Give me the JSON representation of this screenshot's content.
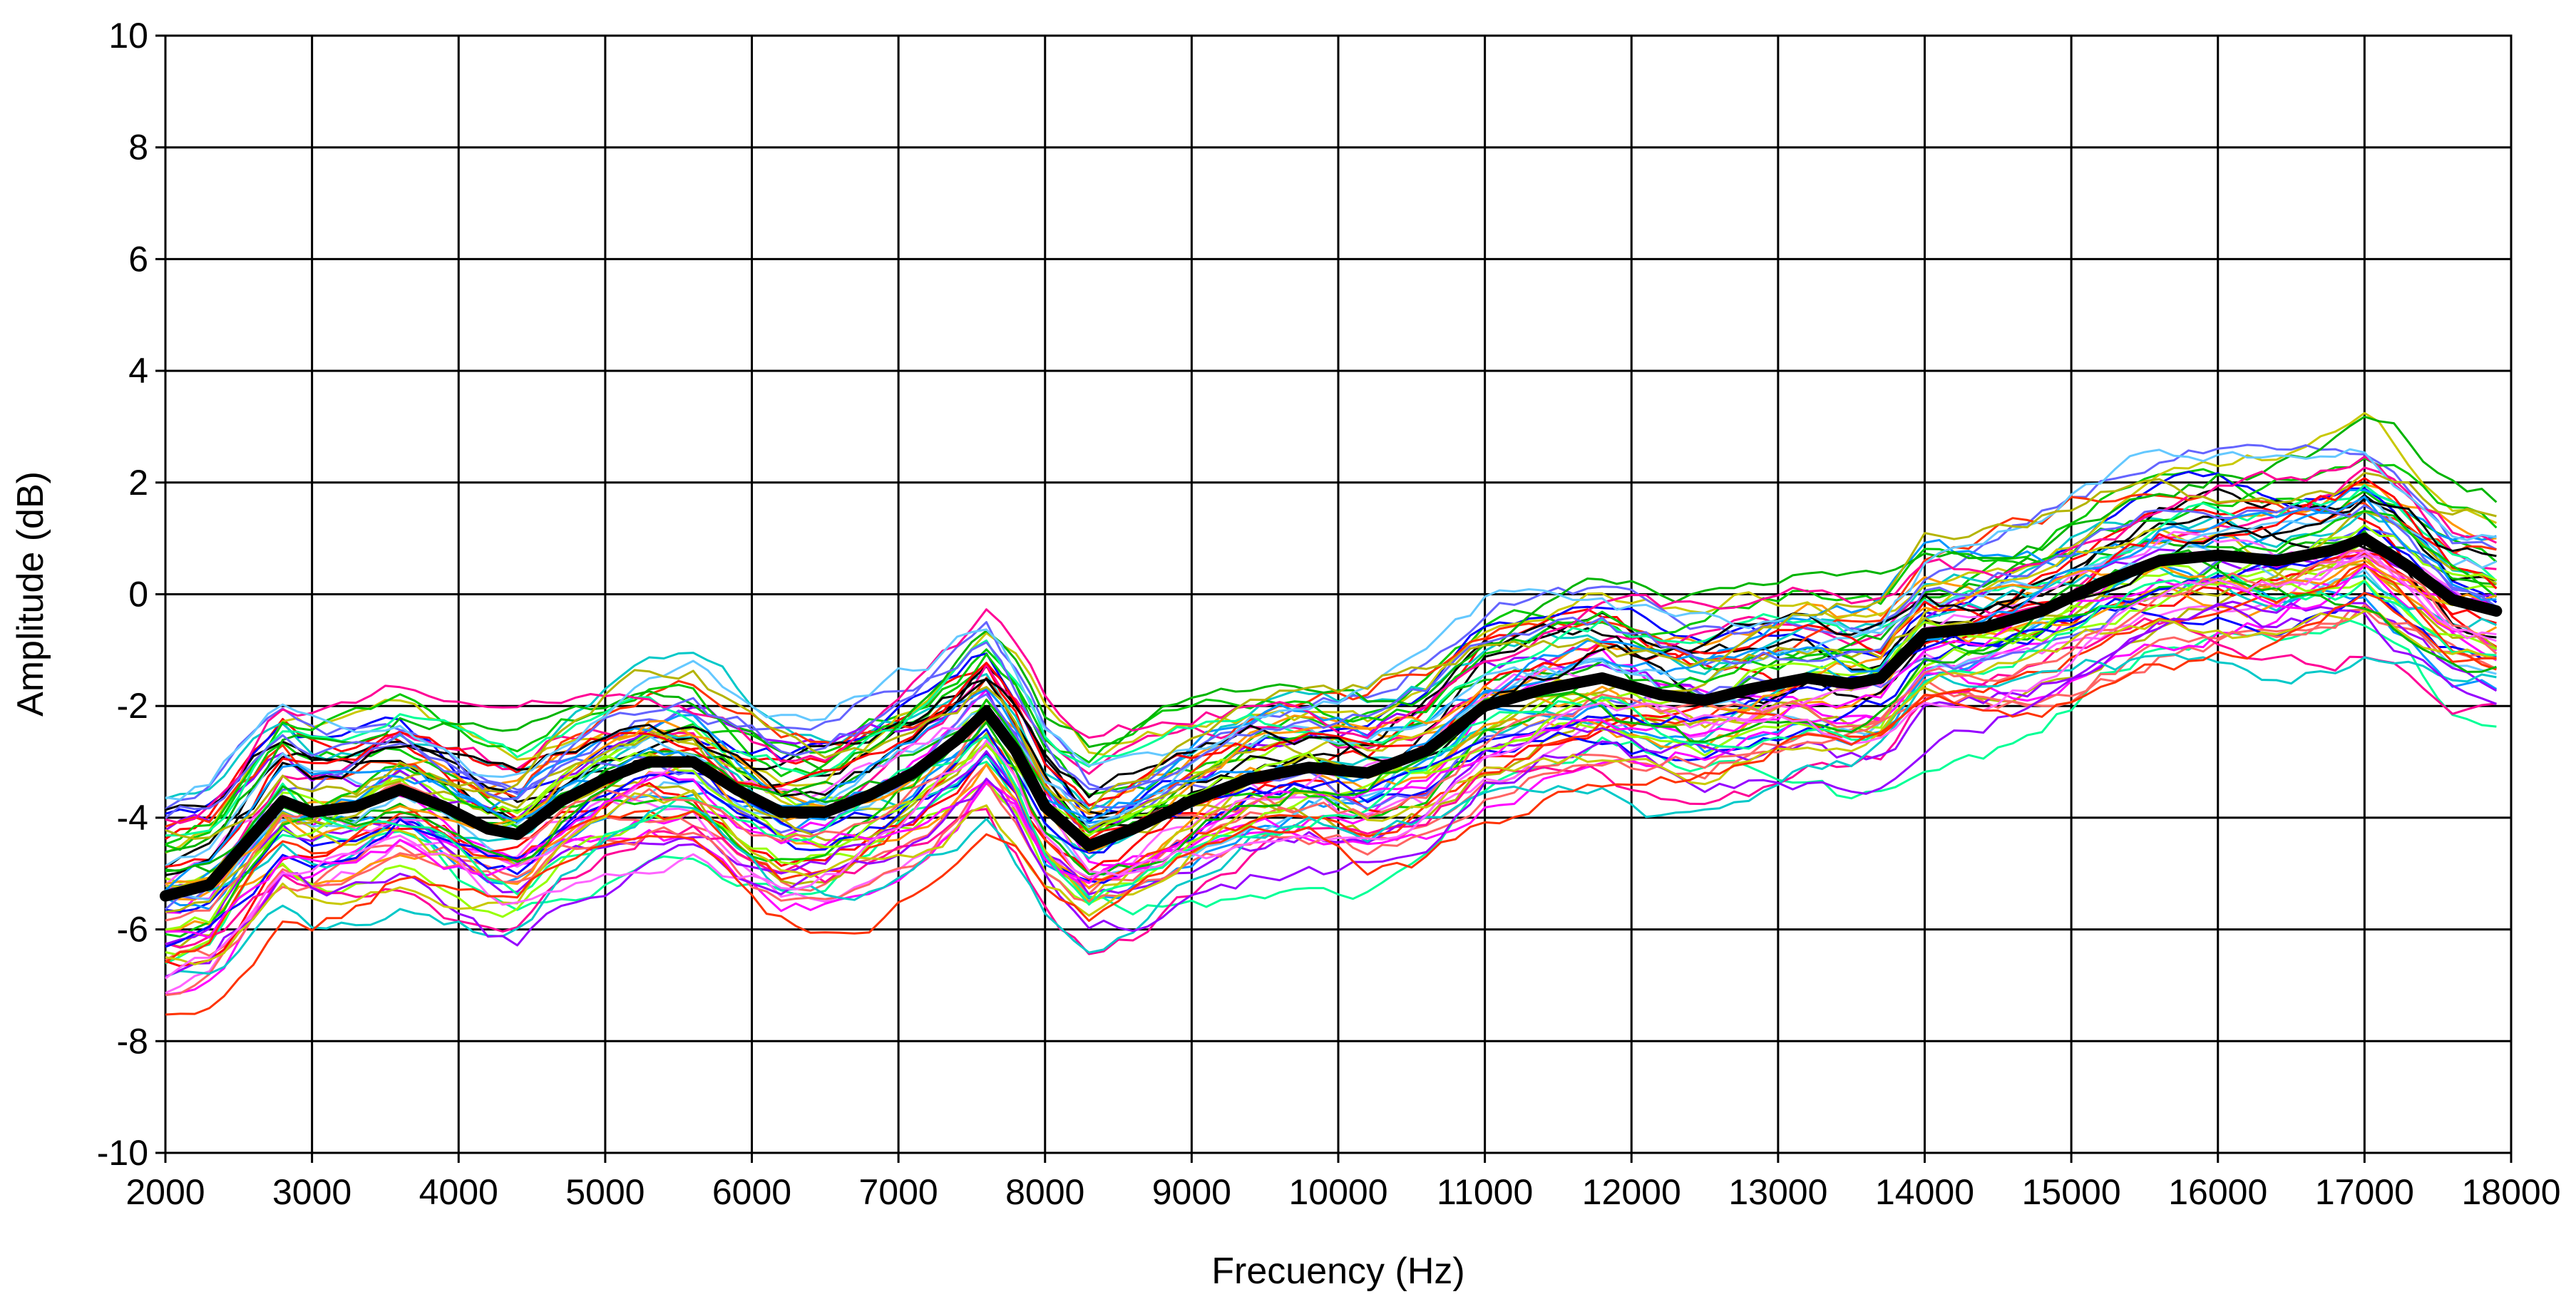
{
  "chart_data": {
    "type": "line",
    "xlabel": "Frecuency (Hz)",
    "ylabel": "Amplitude (dB)",
    "xlim": [
      2000,
      18000
    ],
    "ylim": [
      -10,
      10
    ],
    "x_ticks": [
      2000,
      3000,
      4000,
      5000,
      6000,
      7000,
      8000,
      9000,
      10000,
      11000,
      12000,
      13000,
      14000,
      15000,
      16000,
      17000,
      18000
    ],
    "y_ticks": [
      10,
      8,
      6,
      4,
      2,
      0,
      -2,
      -4,
      -6,
      -8,
      -10
    ],
    "grid": true,
    "legend": "none",
    "mean_series": {
      "color": "#000000",
      "x": [
        2000,
        2300,
        2500,
        2800,
        3000,
        3300,
        3600,
        3900,
        4200,
        4400,
        4700,
        5000,
        5300,
        5600,
        5900,
        6200,
        6500,
        6800,
        7100,
        7400,
        7600,
        7800,
        8000,
        8300,
        8600,
        9000,
        9400,
        9800,
        10200,
        10600,
        11000,
        11400,
        11800,
        12200,
        12500,
        12800,
        13200,
        13500,
        13700,
        14000,
        14400,
        14800,
        15200,
        15600,
        16000,
        16400,
        16800,
        17000,
        17300,
        17600,
        17900
      ],
      "values": [
        -5.4,
        -5.2,
        -4.6,
        -3.7,
        -3.9,
        -3.8,
        -3.5,
        -3.8,
        -4.2,
        -4.3,
        -3.7,
        -3.3,
        -3.0,
        -3.0,
        -3.5,
        -3.9,
        -3.9,
        -3.6,
        -3.2,
        -2.6,
        -2.1,
        -2.8,
        -3.8,
        -4.5,
        -4.2,
        -3.7,
        -3.3,
        -3.1,
        -3.2,
        -2.8,
        -2.0,
        -1.7,
        -1.5,
        -1.8,
        -1.9,
        -1.7,
        -1.5,
        -1.6,
        -1.5,
        -0.7,
        -0.6,
        -0.3,
        0.2,
        0.6,
        0.7,
        0.6,
        0.8,
        1.0,
        0.5,
        -0.1,
        -0.3
      ]
    },
    "series_palette": [
      "#ff0000",
      "#00c800",
      "#0000ff",
      "#ff00ff",
      "#00c8c8",
      "#ff9600",
      "#000000",
      "#96ff00",
      "#ff0096",
      "#0096ff",
      "#9600ff",
      "#00ff96",
      "#c8c800",
      "#ff6464",
      "#6464ff",
      "#00b400",
      "#ff64ff",
      "#64c8ff",
      "#b4b400",
      "#ff3200"
    ]
  }
}
